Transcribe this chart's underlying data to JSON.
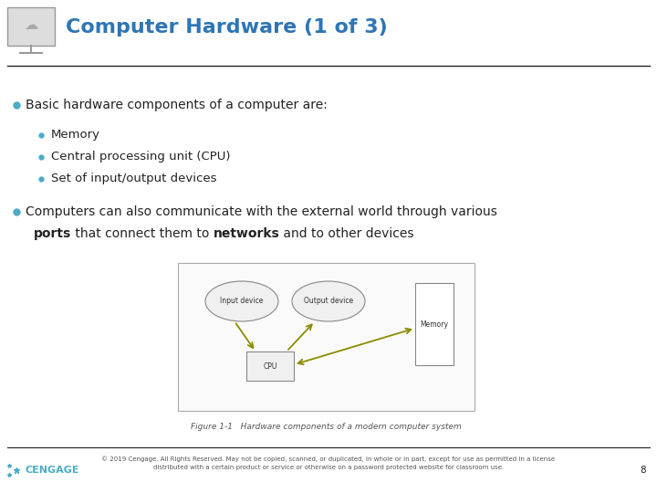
{
  "title": "Computer Hardware (1 of 3)",
  "title_color": "#2E75B6",
  "title_fontsize": 16,
  "bg_color": "#FFFFFF",
  "bullet_color": "#4BACC6",
  "text_color": "#222222",
  "bullet1": "Basic hardware components of a computer are:",
  "sub_bullets": [
    "Memory",
    "Central processing unit (CPU)",
    "Set of input/output devices"
  ],
  "footer_text": "© 2019 Cengage. All Rights Reserved. May not be copied, scanned, or duplicated, in whole or in part, except for use as permitted in a license\ndistributed with a certain product or service or otherwise on a password protected website for classroom use.",
  "footer_color": "#555555",
  "page_num": "8",
  "separator_color": "#222222",
  "diagram_caption": "Figure 1-1   Hardware components of a modern computer system",
  "diagram_arrow_color": "#8B8B00",
  "diagram_text_color": "#333333",
  "cengage_color": "#4BACC6"
}
